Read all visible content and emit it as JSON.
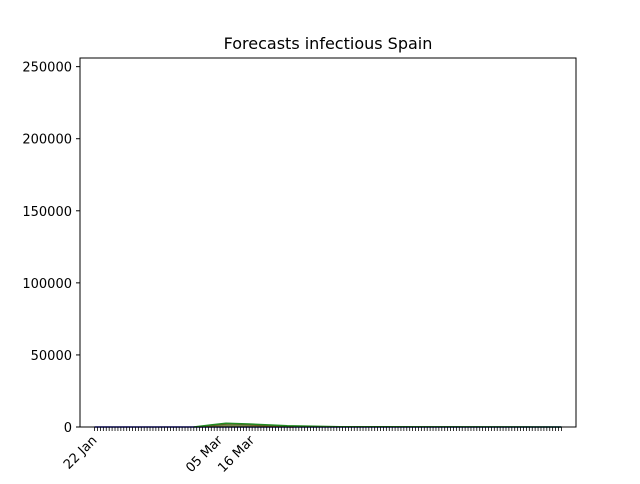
{
  "chart_data": {
    "type": "area",
    "title": "Forecasts infectious Spain",
    "xlabel": "",
    "ylabel": "",
    "x_start": "2020-01-22",
    "x_end": "2020-06-30",
    "xlim": [
      "2020-01-17",
      "2020-07-05"
    ],
    "ylim": [
      0,
      256000
    ],
    "yticks": [
      0,
      50000,
      100000,
      150000,
      200000,
      250000
    ],
    "xtick_labels": [
      {
        "date": "2020-01-22",
        "label": "22 Jan"
      },
      {
        "date": "2020-03-05",
        "label": "05 Mar"
      },
      {
        "date": "2020-03-16",
        "label": "16 Mar"
      }
    ],
    "grid": false,
    "legend": "none",
    "series": [
      {
        "color": "#0000cc",
        "points": [
          {
            "x": "2020-01-22",
            "y": 0
          },
          {
            "x": "2020-03-01",
            "y": 0
          },
          {
            "x": "2020-03-10",
            "y": 0
          },
          {
            "x": "2020-06-30",
            "y": 0
          }
        ]
      },
      {
        "color": "#cc2222",
        "points": [
          {
            "x": "2020-02-27",
            "y": 0
          },
          {
            "x": "2020-03-03",
            "y": 1200
          },
          {
            "x": "2020-03-08",
            "y": 2300
          },
          {
            "x": "2020-03-14",
            "y": 1700
          },
          {
            "x": "2020-03-22",
            "y": 600
          },
          {
            "x": "2020-03-30",
            "y": 0
          }
        ]
      },
      {
        "color": "#228b22",
        "points": [
          {
            "x": "2020-02-25",
            "y": 0
          },
          {
            "x": "2020-03-02",
            "y": 1500
          },
          {
            "x": "2020-03-07",
            "y": 2600
          },
          {
            "x": "2020-03-15",
            "y": 2100
          },
          {
            "x": "2020-03-28",
            "y": 900
          },
          {
            "x": "2020-04-15",
            "y": 200
          },
          {
            "x": "2020-06-30",
            "y": 0
          }
        ]
      }
    ]
  }
}
